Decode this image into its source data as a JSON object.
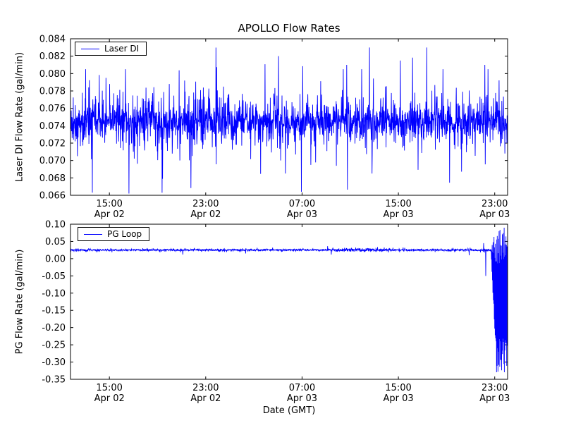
{
  "figure": {
    "title": "APOLLO Flow Rates",
    "xlabel": "Date (GMT)",
    "background": "#ffffff",
    "line_color": "#0000ff",
    "axes_color": "#000000"
  },
  "chart_data": [
    {
      "type": "line",
      "name": "laser-di",
      "title": "APOLLO Flow Rates",
      "ylabel": "Laser DI Flow Rate (gal/min)",
      "legend": "Laser DI",
      "legend_position": "upper left",
      "grid": false,
      "ylim": [
        0.066,
        0.084
      ],
      "yticks": [
        0.066,
        0.068,
        0.07,
        0.072,
        0.074,
        0.076,
        0.078,
        0.08,
        0.082,
        0.084
      ],
      "ytick_decimals": 3,
      "xlim_hours": [
        0,
        36.3
      ],
      "xticks": [
        {
          "hour": 3.23,
          "time": "15:00",
          "date": "Apr 02"
        },
        {
          "hour": 11.23,
          "time": "23:00",
          "date": "Apr 02"
        },
        {
          "hour": 19.23,
          "time": "07:00",
          "date": "Apr 03"
        },
        {
          "hour": 27.23,
          "time": "15:00",
          "date": "Apr 03"
        },
        {
          "hour": 35.23,
          "time": "23:00",
          "date": "Apr 03"
        }
      ],
      "series": {
        "name": "Laser DI",
        "color": "#0000ff",
        "gen": {
          "seed": 1337,
          "points": 1900,
          "baseline": 0.0745,
          "core_std": 0.0008,
          "excursion_prob": 0.3,
          "excursion_min": 0.0008,
          "excursion_max": 0.003,
          "big_prob": 0.015,
          "big_min": 0.0035,
          "big_max": 0.0065,
          "clamp": [
            0.0662,
            0.0835
          ],
          "spikes": [
            {
              "f": 0.016,
              "v": 0.0705
            },
            {
              "f": 0.035,
              "v": 0.0805
            },
            {
              "f": 0.05,
              "v": 0.0663
            },
            {
              "f": 0.081,
              "v": 0.0795
            },
            {
              "f": 0.126,
              "v": 0.0805
            },
            {
              "f": 0.134,
              "v": 0.0662
            },
            {
              "f": 0.226,
              "v": 0.0788
            },
            {
              "f": 0.261,
              "v": 0.0792
            },
            {
              "f": 0.35,
              "v": 0.0785
            },
            {
              "f": 0.476,
              "v": 0.082
            },
            {
              "f": 0.492,
              "v": 0.0685
            },
            {
              "f": 0.55,
              "v": 0.0695
            },
            {
              "f": 0.624,
              "v": 0.0805
            },
            {
              "f": 0.632,
              "v": 0.081
            },
            {
              "f": 0.666,
              "v": 0.0805
            },
            {
              "f": 0.684,
              "v": 0.083
            },
            {
              "f": 0.69,
              "v": 0.0685
            },
            {
              "f": 0.721,
              "v": 0.0785
            },
            {
              "f": 0.815,
              "v": 0.083
            },
            {
              "f": 0.852,
              "v": 0.0805
            },
            {
              "f": 0.948,
              "v": 0.081
            },
            {
              "f": 0.955,
              "v": 0.0805
            }
          ]
        }
      }
    },
    {
      "type": "line",
      "name": "pg-loop",
      "ylabel": "PG Flow Rate (gal/min)",
      "legend": "PG Loop",
      "legend_position": "upper left",
      "grid": false,
      "ylim": [
        -0.35,
        0.1
      ],
      "yticks": [
        -0.35,
        -0.3,
        -0.25,
        -0.2,
        -0.15,
        -0.1,
        -0.05,
        0.0,
        0.05,
        0.1
      ],
      "ytick_decimals": 2,
      "xlim_hours": [
        0,
        36.3
      ],
      "xticks": [
        {
          "hour": 3.23,
          "time": "15:00",
          "date": "Apr 02"
        },
        {
          "hour": 11.23,
          "time": "23:00",
          "date": "Apr 02"
        },
        {
          "hour": 19.23,
          "time": "07:00",
          "date": "Apr 03"
        },
        {
          "hour": 27.23,
          "time": "15:00",
          "date": "Apr 03"
        },
        {
          "hour": 35.23,
          "time": "23:00",
          "date": "Apr 03"
        }
      ],
      "series": {
        "name": "PG Loop",
        "color": "#0000ff",
        "gen": {
          "seed": 4242,
          "points": 1900,
          "baseline": 0.025,
          "core_std": 0.0013,
          "excursion_prob": 0.06,
          "excursion_min": 0.002,
          "excursion_max": 0.006,
          "big_prob": 0.004,
          "big_min": 0.008,
          "big_max": 0.014,
          "clamp": [
            -0.345,
            0.097
          ],
          "noisy_regions": [
            {
              "f0": 0.6,
              "f1": 0.73,
              "mult": 2.0
            },
            {
              "f0": 0.0,
              "f1": 0.04,
              "mult": 1.4
            }
          ],
          "event": {
            "f_start": 0.962,
            "ramp": 0.012,
            "vmin": -0.34,
            "vmax": 0.093
          },
          "spikes": [
            {
              "f": 0.95,
              "v": -0.05
            },
            {
              "f": 0.945,
              "v": 0.045
            }
          ]
        }
      }
    }
  ]
}
